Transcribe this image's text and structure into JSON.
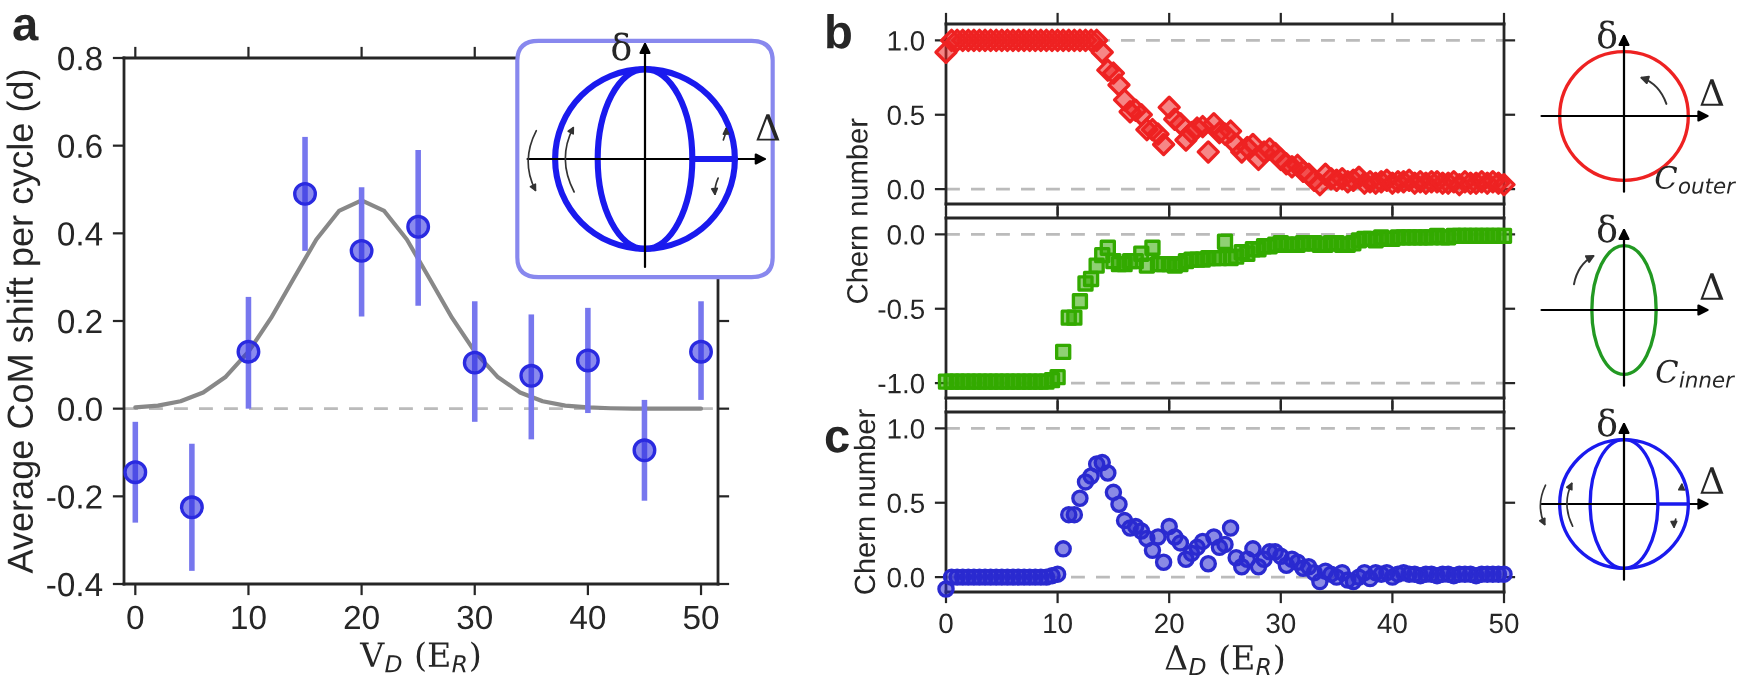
{
  "chart_data": [
    {
      "type": "scatter",
      "xlabel": "V$_{D}$ (E$_{R}$)",
      "ylabel": "Average CoM shift per cycle (d)",
      "annotations": [
        "a",
        "δ",
        "Δ"
      ],
      "series": [
        {
          "type": "scatter",
          "marker": "circle",
          "color": "#2a2ae0",
          "x": [
            0,
            5,
            10,
            15,
            20,
            25,
            30,
            35,
            40,
            45,
            50
          ],
          "values": [
            -0.145,
            -0.225,
            0.13,
            0.49,
            0.36,
            0.415,
            0.105,
            0.075,
            0.11,
            -0.095,
            0.13
          ],
          "errors": [
            [
              -0.26,
              -0.03
            ],
            [
              -0.37,
              -0.08
            ],
            [
              0.0,
              0.255
            ],
            [
              0.36,
              0.62
            ],
            [
              0.21,
              0.505
            ],
            [
              0.235,
              0.59
            ],
            [
              -0.03,
              0.245
            ],
            [
              -0.07,
              0.215
            ],
            [
              -0.01,
              0.23
            ],
            [
              -0.21,
              0.02
            ],
            [
              0.02,
              0.245
            ]
          ]
        },
        {
          "type": "line",
          "color": "#888888",
          "x": [
            0,
            2,
            4,
            6,
            8,
            10,
            12,
            14,
            16,
            18,
            20,
            22,
            24,
            26,
            28,
            30,
            32,
            34,
            36,
            38,
            40,
            42,
            44,
            46,
            48,
            50
          ],
          "values": [
            0.003,
            0.007,
            0.017,
            0.037,
            0.073,
            0.13,
            0.207,
            0.297,
            0.386,
            0.451,
            0.475,
            0.451,
            0.386,
            0.297,
            0.207,
            0.13,
            0.073,
            0.037,
            0.017,
            0.007,
            0.003,
            0.001,
            0.0,
            0.0,
            0.0,
            0.0
          ]
        }
      ],
      "xlim": [
        -1,
        51.5
      ],
      "xticks": [
        0,
        10,
        20,
        30,
        40,
        50
      ],
      "ylim": [
        -0.4,
        0.8
      ],
      "yticks": [
        -0.4,
        -0.2,
        {
          "value": 0,
          "label": "0.0"
        },
        0.2,
        0.4,
        0.6,
        0.8
      ],
      "ref_lines": [
        {
          "axis": "y",
          "value": 0,
          "color": "#bbbbbb",
          "line_style": "dashed"
        }
      ],
      "grid": false
    },
    {
      "type": "scatter",
      "ylabel": "Chern number",
      "annotations": [
        "b",
        "δ",
        "Δ",
        "C$_{outer}$"
      ],
      "marker": "diamond",
      "tick_labels": "y",
      "series": [
        {
          "color": "#ee2222",
          "x": [
            0,
            0.5,
            1,
            1.5,
            2,
            2.5,
            3,
            3.5,
            4,
            4.5,
            5,
            5.5,
            6,
            6.5,
            7,
            7.5,
            8,
            8.5,
            9,
            9.5,
            10,
            10.5,
            11,
            11.5,
            12,
            12.5,
            13,
            13.5,
            14,
            14.5,
            15,
            15.5,
            16,
            16.5,
            17,
            17.5,
            18,
            18.5,
            19,
            19.5,
            20,
            20.5,
            21,
            21.5,
            22,
            22.5,
            23,
            23.5,
            24,
            24.5,
            25,
            25.5,
            26,
            26.5,
            27,
            27.5,
            28,
            28.5,
            29,
            29.5,
            30,
            30.5,
            31,
            31.5,
            32,
            32.5,
            33,
            33.5,
            34,
            34.5,
            35,
            35.5,
            36,
            36.5,
            37,
            37.5,
            38,
            38.5,
            39,
            39.5,
            40,
            40.5,
            41,
            41.5,
            42,
            42.5,
            43,
            43.5,
            44,
            44.5,
            45,
            45.5,
            46,
            46.5,
            47,
            47.5,
            48,
            48.5,
            49,
            49.5,
            50
          ],
          "values": [
            0.92,
            1.0,
            1.0,
            1.0,
            1.0,
            1.0,
            1.0,
            1.0,
            1.0,
            1.0,
            1.0,
            1.0,
            1.0,
            1.0,
            1.0,
            1.0,
            1.0,
            1.0,
            1.0,
            1.0,
            1.0,
            1.0,
            1.0,
            1.0,
            1.0,
            1.0,
            1.0,
            1.0,
            0.92,
            0.8,
            0.78,
            0.7,
            0.6,
            0.52,
            0.53,
            0.5,
            0.4,
            0.4,
            0.37,
            0.3,
            0.55,
            0.47,
            0.44,
            0.33,
            0.38,
            0.41,
            0.42,
            0.25,
            0.44,
            0.38,
            0.37,
            0.39,
            0.3,
            0.25,
            0.28,
            0.3,
            0.2,
            0.25,
            0.27,
            0.24,
            0.2,
            0.17,
            0.15,
            0.16,
            0.12,
            0.1,
            0.06,
            0.03,
            0.1,
            0.07,
            0.06,
            0.07,
            0.05,
            0.06,
            0.08,
            0.04,
            0.05,
            0.04,
            0.05,
            0.06,
            0.04,
            0.05,
            0.05,
            0.06,
            0.04,
            0.05,
            0.04,
            0.05,
            0.05,
            0.04,
            0.04,
            0.05,
            0.03,
            0.05,
            0.04,
            0.04,
            0.05,
            0.04,
            0.05,
            0.04,
            0.03
          ]
        }
      ],
      "xlim": [
        0,
        50
      ],
      "xticks": [
        0,
        10,
        20,
        30,
        40,
        50
      ],
      "ylim": [
        -0.1,
        1.11
      ],
      "yticks": [
        {
          "value": 0,
          "label": "0.0"
        },
        0.5,
        {
          "value": 1,
          "label": "1.0"
        }
      ],
      "ref_lines": [
        {
          "axis": "y",
          "value": 0,
          "color": "#bbbbbb",
          "line_style": "dashed"
        },
        {
          "axis": "y",
          "value": 1,
          "color": "#bbbbbb",
          "line_style": "dashed"
        }
      ],
      "grid": false
    },
    {
      "type": "scatter",
      "annotations": [
        "δ",
        "Δ",
        "C$_{inner}$"
      ],
      "marker": "square",
      "tick_labels": "y",
      "series": [
        {
          "color": "#33aa00",
          "x": [
            0,
            0.5,
            1,
            1.5,
            2,
            2.5,
            3,
            3.5,
            4,
            4.5,
            5,
            5.5,
            6,
            6.5,
            7,
            7.5,
            8,
            8.5,
            9,
            9.5,
            10,
            10.5,
            11,
            11.5,
            12,
            12.5,
            13,
            13.5,
            14,
            14.5,
            15,
            15.5,
            16,
            16.5,
            17,
            17.5,
            18,
            18.5,
            19,
            19.5,
            20,
            20.5,
            21,
            21.5,
            22,
            22.5,
            23,
            23.5,
            24,
            24.5,
            25,
            25.5,
            26,
            26.5,
            27,
            27.5,
            28,
            28.5,
            29,
            29.5,
            30,
            30.5,
            31,
            31.5,
            32,
            32.5,
            33,
            33.5,
            34,
            34.5,
            35,
            35.5,
            36,
            36.5,
            37,
            37.5,
            38,
            38.5,
            39,
            39.5,
            40,
            40.5,
            41,
            41.5,
            42,
            42.5,
            43,
            43.5,
            44,
            44.5,
            45,
            45.5,
            46,
            46.5,
            47,
            47.5,
            48,
            48.5,
            49,
            49.5,
            50
          ],
          "values": [
            -0.99,
            -0.99,
            -0.99,
            -0.99,
            -0.99,
            -0.99,
            -0.99,
            -0.99,
            -0.99,
            -0.99,
            -0.99,
            -0.99,
            -0.99,
            -0.99,
            -0.99,
            -0.99,
            -0.99,
            -0.99,
            -0.99,
            -0.98,
            -0.96,
            -0.79,
            -0.56,
            -0.56,
            -0.45,
            -0.33,
            -0.3,
            -0.21,
            -0.14,
            -0.09,
            -0.18,
            -0.2,
            -0.2,
            -0.18,
            -0.18,
            -0.13,
            -0.21,
            -0.09,
            -0.2,
            -0.2,
            -0.2,
            -0.21,
            -0.2,
            -0.18,
            -0.17,
            -0.17,
            -0.17,
            -0.16,
            -0.16,
            -0.16,
            -0.05,
            -0.16,
            -0.15,
            -0.12,
            -0.13,
            -0.1,
            -0.1,
            -0.08,
            -0.08,
            -0.07,
            -0.06,
            -0.07,
            -0.07,
            -0.07,
            -0.06,
            -0.06,
            -0.06,
            -0.07,
            -0.07,
            -0.06,
            -0.06,
            -0.07,
            -0.07,
            -0.06,
            -0.04,
            -0.03,
            -0.03,
            -0.04,
            -0.02,
            -0.03,
            -0.03,
            -0.02,
            -0.02,
            -0.02,
            -0.02,
            -0.02,
            -0.02,
            -0.02,
            -0.01,
            -0.02,
            -0.02,
            -0.01,
            -0.01,
            -0.01,
            -0.01,
            -0.01,
            -0.01,
            -0.01,
            -0.01,
            -0.01,
            -0.01
          ]
        }
      ],
      "xlim": [
        0,
        50
      ],
      "xticks": [
        0,
        10,
        20,
        30,
        40,
        50
      ],
      "ylim": [
        -1.1,
        0.11
      ],
      "yticks": [
        {
          "value": -1,
          "label": "-1.0"
        },
        -0.5,
        {
          "value": 0,
          "label": "0.0"
        }
      ],
      "ref_lines": [
        {
          "axis": "y",
          "value": 0,
          "color": "#bbbbbb",
          "line_style": "dashed"
        },
        {
          "axis": "y",
          "value": -1,
          "color": "#bbbbbb",
          "line_style": "dashed"
        }
      ],
      "grid": false
    },
    {
      "type": "scatter",
      "xlabel": "Δ$_{D}$ (E$_{R}$)",
      "ylabel": "Chern number",
      "annotations": [
        "c",
        "δ",
        "Δ"
      ],
      "marker": "circle",
      "series": [
        {
          "color": "#2a2ad0",
          "x": [
            0,
            0.5,
            1,
            1.5,
            2,
            2.5,
            3,
            3.5,
            4,
            4.5,
            5,
            5.5,
            6,
            6.5,
            7,
            7.5,
            8,
            8.5,
            9,
            9.5,
            10,
            10.5,
            11,
            11.5,
            12,
            12.5,
            13,
            13.5,
            14,
            14.5,
            15,
            15.5,
            16,
            16.5,
            17,
            17.5,
            18,
            18.5,
            19,
            19.5,
            20,
            20.5,
            21,
            21.5,
            22,
            22.5,
            23,
            23.5,
            24,
            24.5,
            25,
            25.5,
            26,
            26.5,
            27,
            27.5,
            28,
            28.5,
            29,
            29.5,
            30,
            30.5,
            31,
            31.5,
            32,
            32.5,
            33,
            33.5,
            34,
            34.5,
            35,
            35.5,
            36,
            36.5,
            37,
            37.5,
            38,
            38.5,
            39,
            39.5,
            40,
            40.5,
            41,
            41.5,
            42,
            42.5,
            43,
            43.5,
            44,
            44.5,
            45,
            45.5,
            46,
            46.5,
            47,
            47.5,
            48,
            48.5,
            49,
            49.5,
            50
          ],
          "values": [
            -0.08,
            0.0,
            0.0,
            0.0,
            0.0,
            0.0,
            0.0,
            0.0,
            0.0,
            0.0,
            0.0,
            0.0,
            0.0,
            0.0,
            0.0,
            0.0,
            0.0,
            0.0,
            0.0,
            0.01,
            0.02,
            0.19,
            0.42,
            0.42,
            0.53,
            0.64,
            0.68,
            0.76,
            0.77,
            0.7,
            0.57,
            0.49,
            0.38,
            0.33,
            0.34,
            0.31,
            0.26,
            0.18,
            0.27,
            0.1,
            0.34,
            0.27,
            0.23,
            0.12,
            0.16,
            0.2,
            0.24,
            0.09,
            0.27,
            0.2,
            0.22,
            0.33,
            0.13,
            0.07,
            0.12,
            0.19,
            0.07,
            0.12,
            0.17,
            0.17,
            0.14,
            0.08,
            0.12,
            0.1,
            0.06,
            0.07,
            0.03,
            -0.03,
            0.04,
            0.02,
            0.0,
            0.03,
            -0.02,
            -0.03,
            0.0,
            0.03,
            -0.01,
            0.03,
            0.02,
            0.03,
            0.0,
            0.02,
            0.03,
            0.02,
            0.02,
            0.01,
            0.02,
            0.02,
            0.01,
            0.02,
            0.02,
            0.01,
            0.02,
            0.02,
            0.02,
            0.01,
            0.02,
            0.02,
            0.02,
            0.02,
            0.02
          ]
        }
      ],
      "xlim": [
        0,
        50
      ],
      "xticks": [
        0,
        10,
        20,
        30,
        40,
        50
      ],
      "ylim": [
        -0.1,
        1.11
      ],
      "yticks": [
        {
          "value": 0,
          "label": "0.0"
        },
        0.5,
        {
          "value": 1,
          "label": "1.0"
        }
      ],
      "ref_lines": [
        {
          "axis": "y",
          "value": 0,
          "color": "#bbbbbb",
          "line_style": "dashed"
        },
        {
          "axis": "y",
          "value": 1,
          "color": "#bbbbbb",
          "line_style": "dashed"
        }
      ],
      "grid": false
    }
  ]
}
